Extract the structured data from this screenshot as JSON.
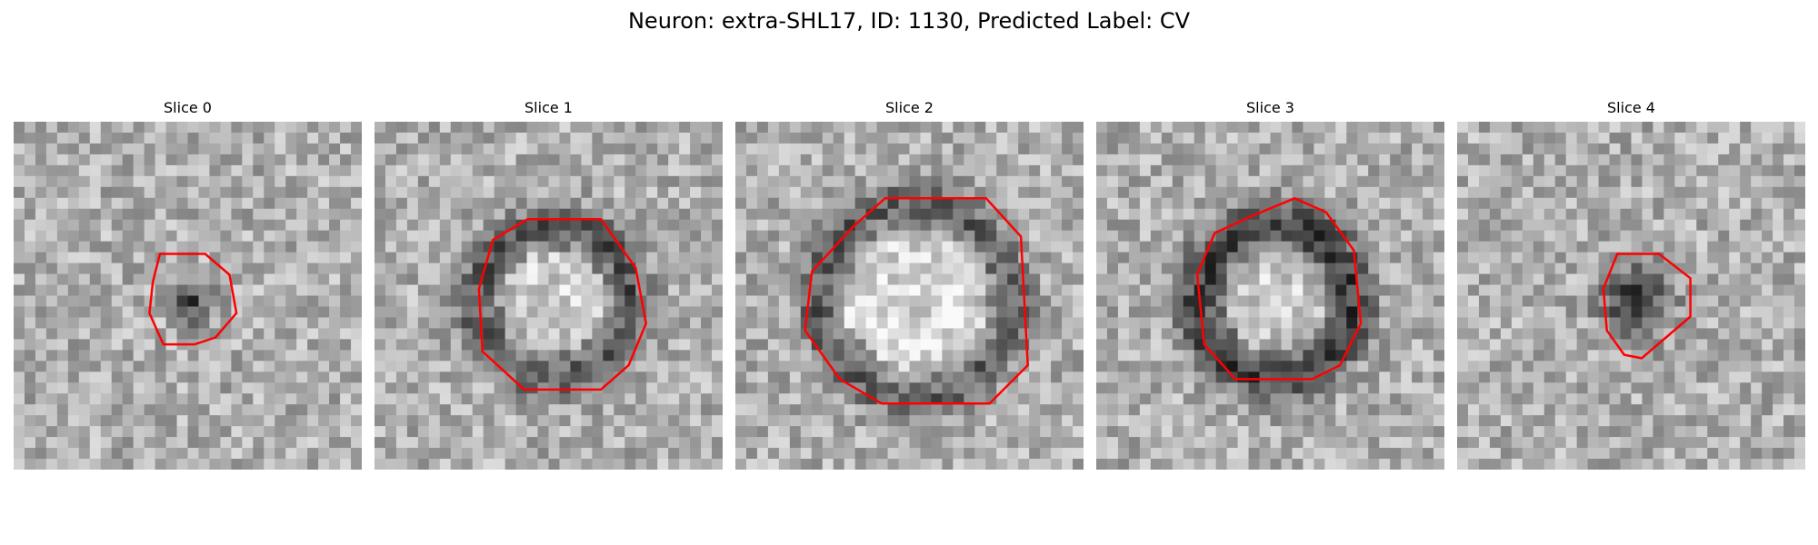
{
  "figure": {
    "title": "Neuron: extra-SHL17, ID: 1130, Predicted Label: CV",
    "slices": [
      {
        "title": "Slice 0",
        "texture": "speckle",
        "outline_color": "#ff0000",
        "outline_scale": 0.52
      },
      {
        "title": "Slice 1",
        "texture": "ring",
        "outline_color": "#ff0000",
        "outline_scale": 1.0
      },
      {
        "title": "Slice 2",
        "texture": "ring-large",
        "outline_color": "#ff0000",
        "outline_scale": 1.18
      },
      {
        "title": "Slice 3",
        "texture": "ring-thick",
        "outline_color": "#ff0000",
        "outline_scale": 1.0
      },
      {
        "title": "Slice 4",
        "texture": "blob",
        "outline_color": "#ff0000",
        "outline_scale": 0.55
      }
    ]
  }
}
